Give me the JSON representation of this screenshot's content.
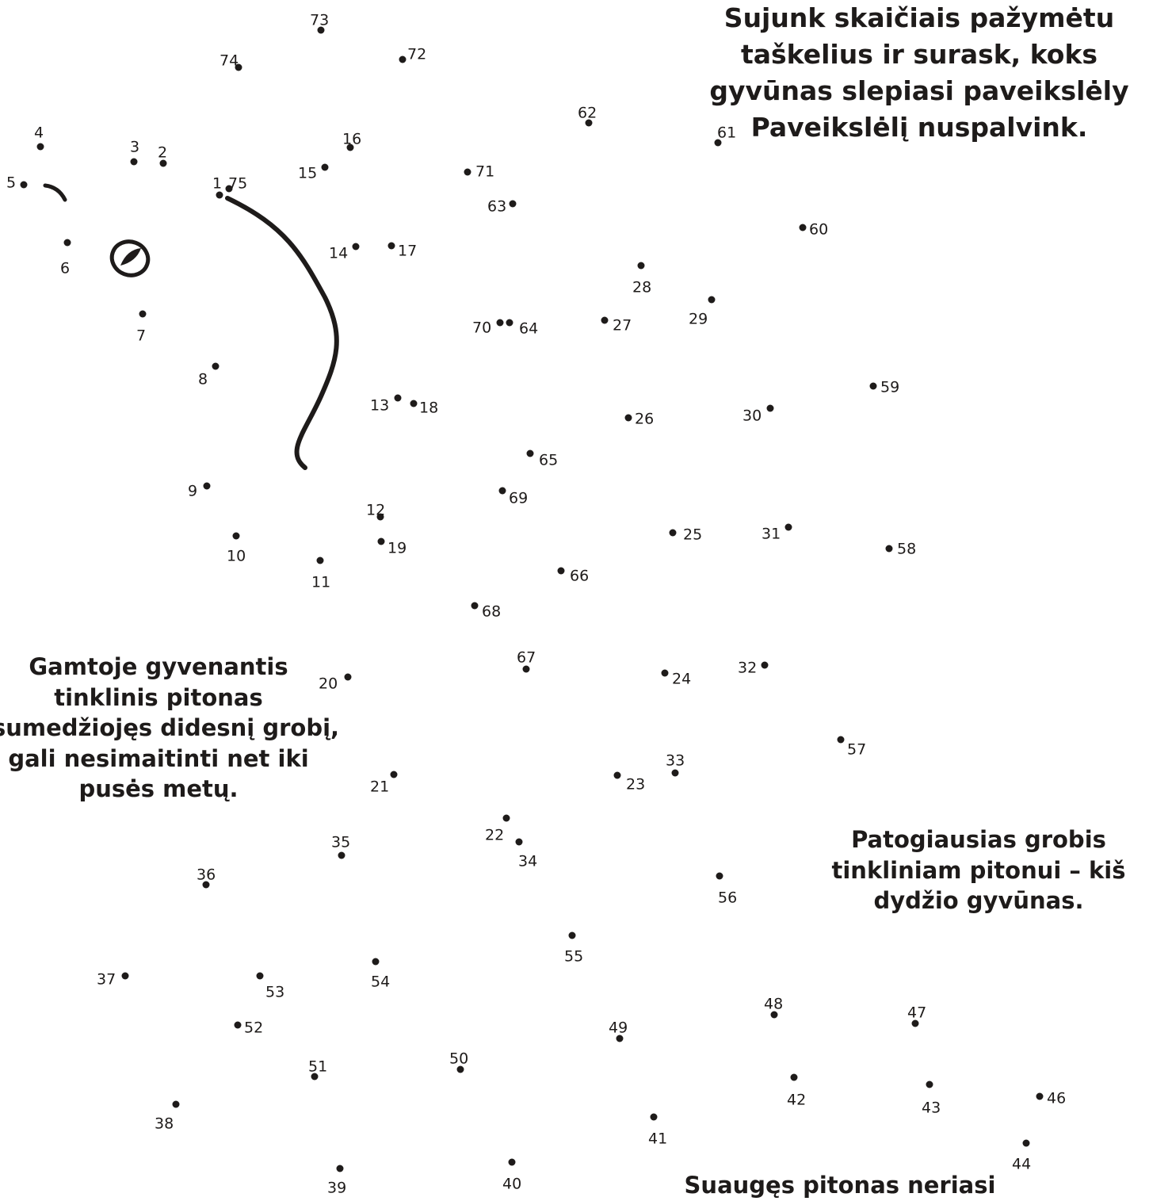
{
  "instructions": {
    "lines": [
      "Sujunk skaičiais pažymėtu",
      "taškelius ir surask, koks",
      "gyvūnas slepiasi paveikslėly",
      "Paveikslėlį nuspalvink."
    ]
  },
  "facts": [
    {
      "lines": [
        "Gamtoje gyvenantis",
        "tinklinis pitonas",
        "sumedžiojęs didesnį grobį,",
        "gali nesimaitinti net iki",
        "pusės metų."
      ]
    },
    {
      "lines": [
        "Patogiausias grobis",
        "tinkliniam pitonui – kiš",
        "dydžio gyvūnas."
      ]
    },
    {
      "lines": [
        "Suaugęs pitonas neriasi"
      ]
    }
  ],
  "dot_labels": [
    "1",
    "2",
    "3",
    "4",
    "5",
    "6",
    "7",
    "8",
    "9",
    "10",
    "11",
    "12",
    "13",
    "14",
    "15",
    "16",
    "17",
    "18",
    "19",
    "20",
    "21",
    "22",
    "23",
    "24",
    "25",
    "26",
    "27",
    "28",
    "29",
    "30",
    "31",
    "32",
    "33",
    "34",
    "35",
    "36",
    "37",
    "38",
    "39",
    "40",
    "41",
    "42",
    "43",
    "44",
    "46",
    "47",
    "48",
    "49",
    "50",
    "51",
    "52",
    "53",
    "54",
    "55",
    "56",
    "57",
    "58",
    "59",
    "60",
    "61",
    "62",
    "63",
    "64",
    "65",
    "66",
    "67",
    "68",
    "69",
    "70",
    "71",
    "72",
    "73",
    "74",
    "75"
  ],
  "colors": {
    "ink": "#1e1b1a",
    "background": "#ffffff"
  }
}
